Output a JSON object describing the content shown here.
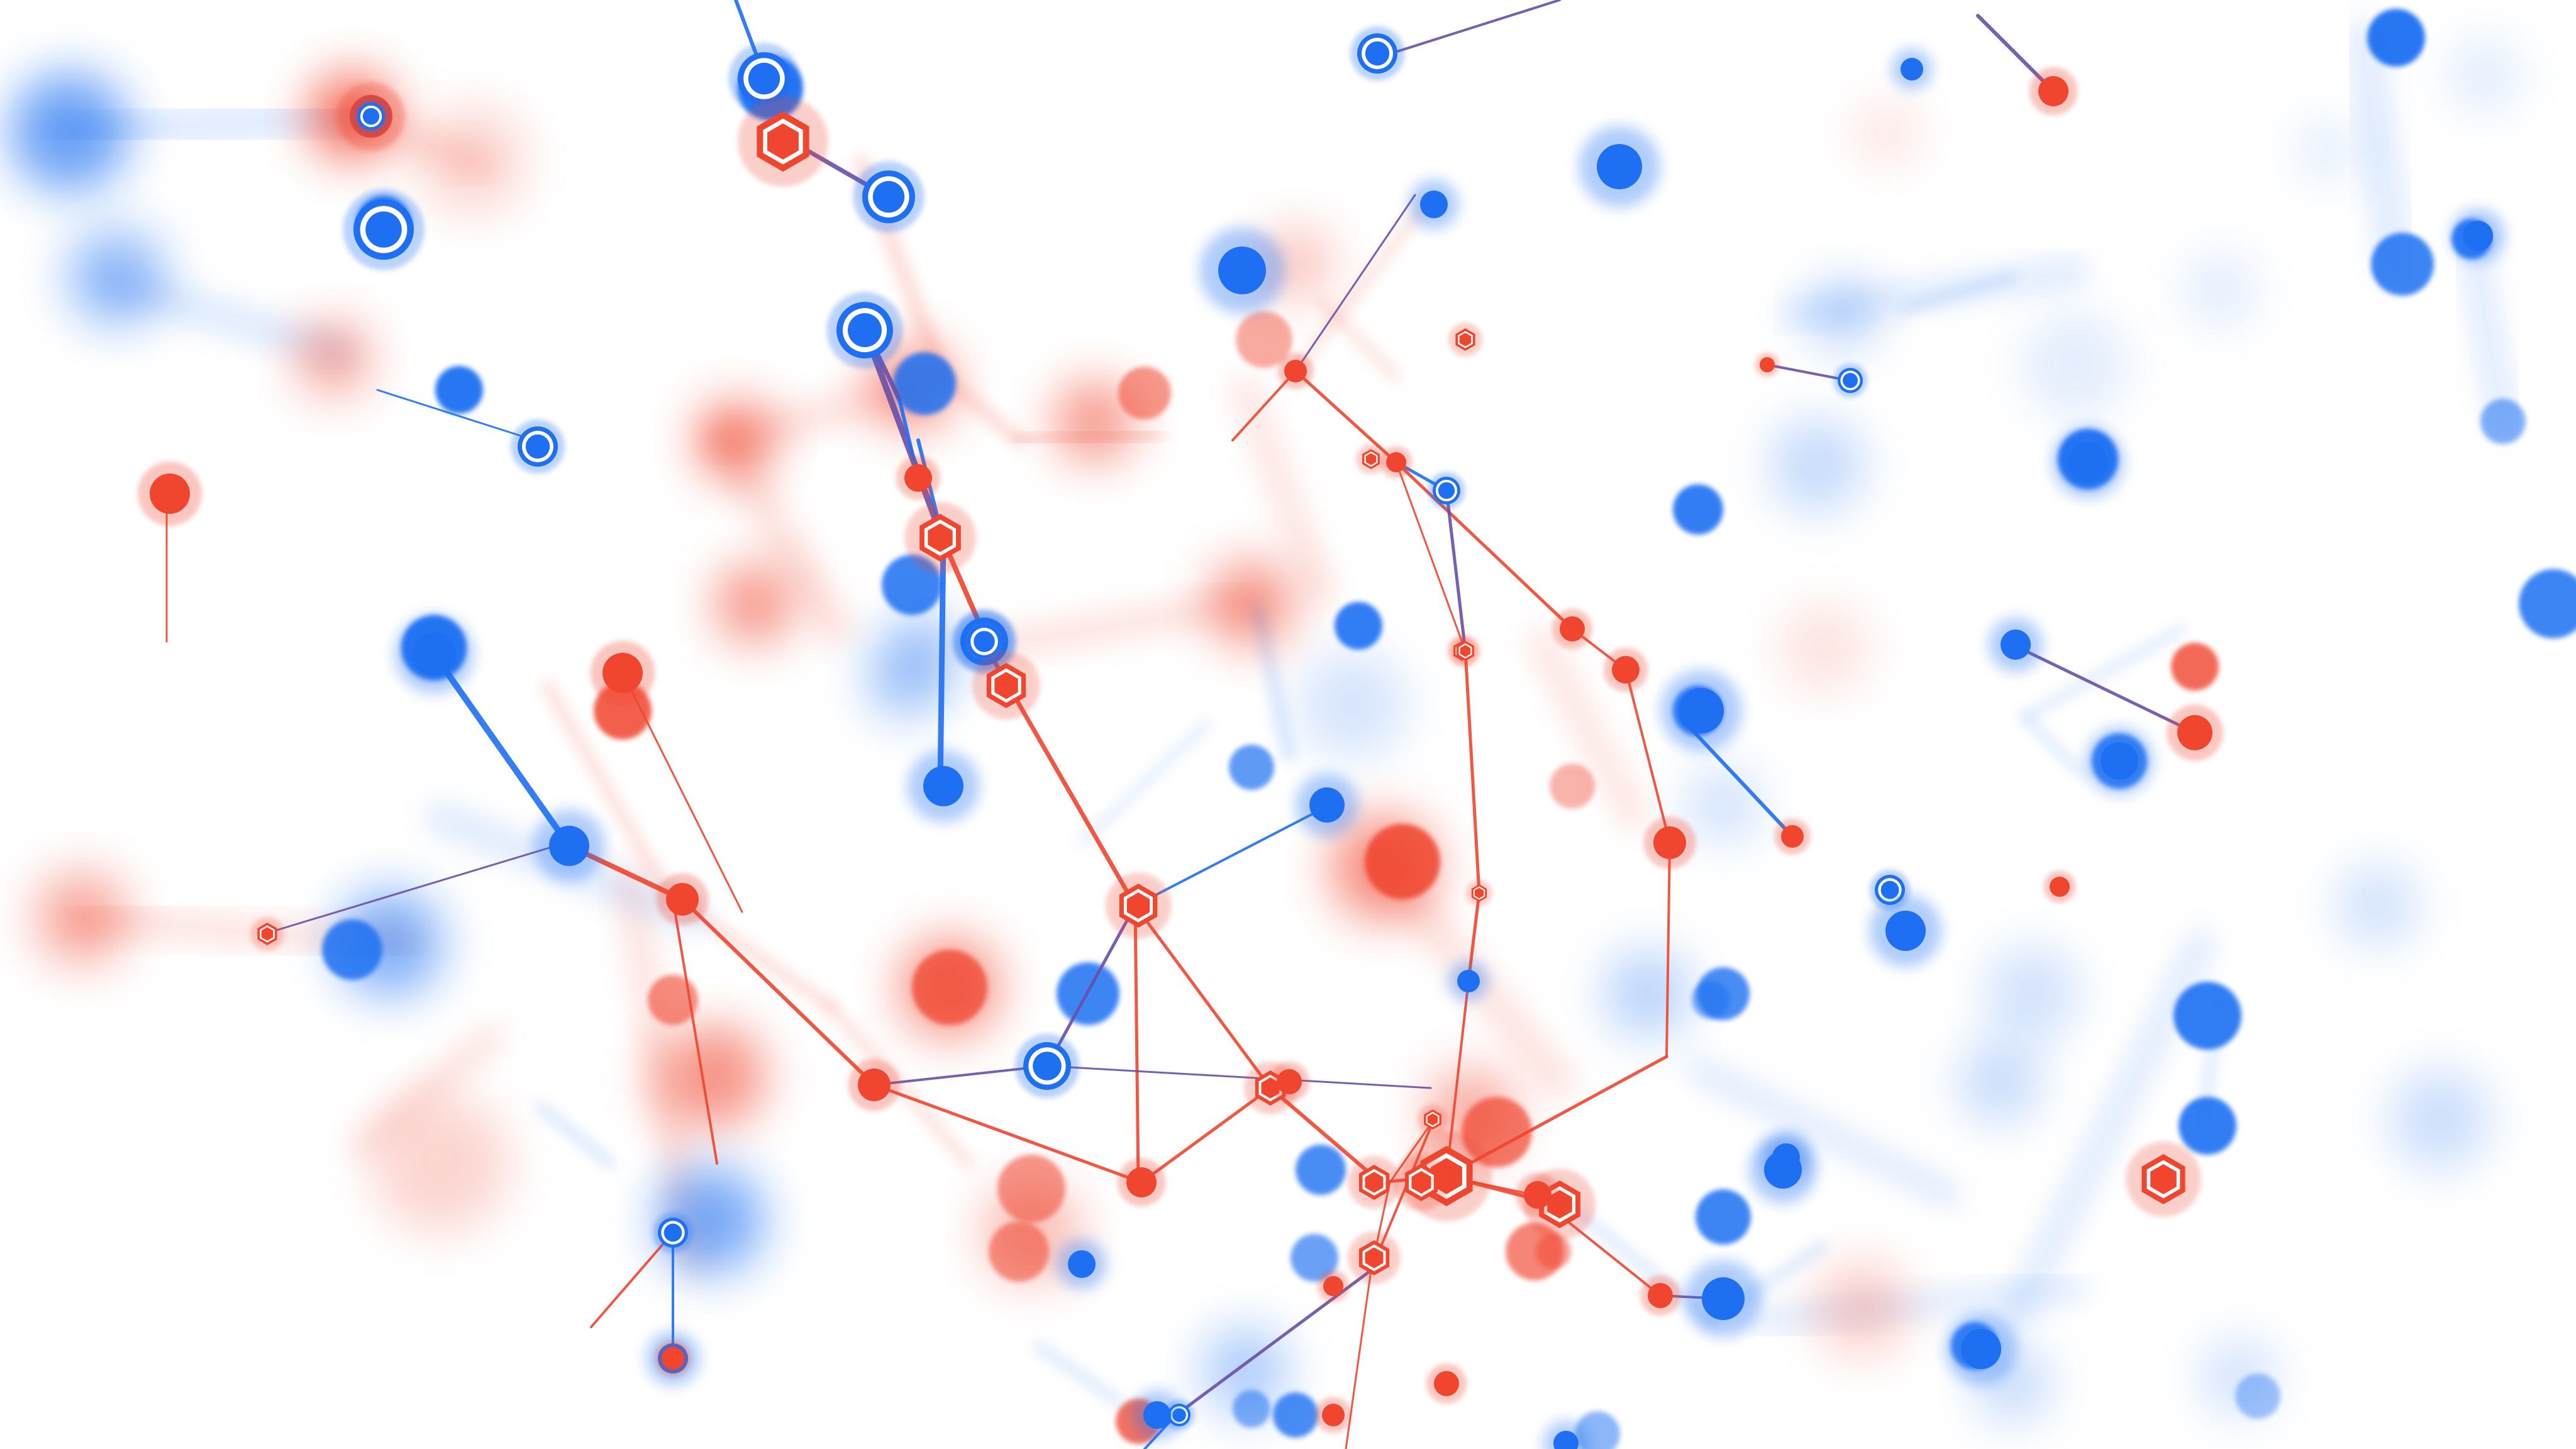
{
  "scene": {
    "description_visible_text": "",
    "background_color": "#ffffff",
    "colors": {
      "blue": "#1f6ff2",
      "red": "#f0452e",
      "purple_edge": "#6a4fa8"
    },
    "node_types": [
      "blue-ring-node",
      "blue-dot-node",
      "red-hexagon-node",
      "red-dot-node"
    ]
  }
}
